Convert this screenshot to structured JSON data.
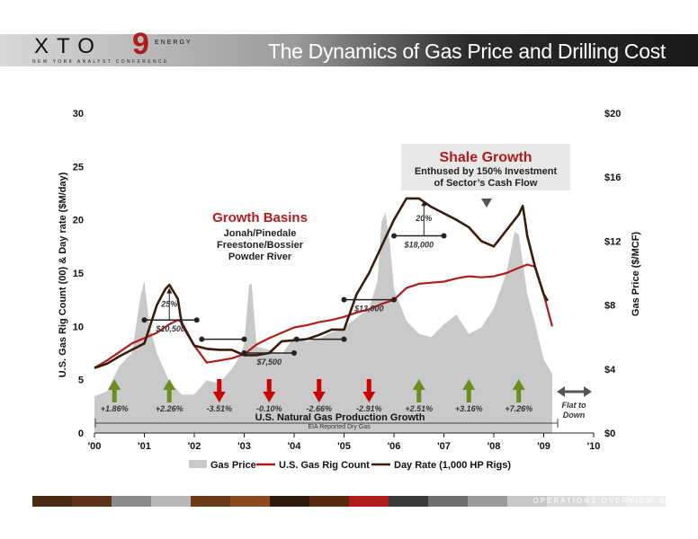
{
  "header": {
    "logo_text": "XTO",
    "logo_nine": "9",
    "logo_energy": "ENERGY",
    "logo_sub": "NEW YORK ANALYST CONFERENCE",
    "title": "The Dynamics of Gas Price and Drilling Cost"
  },
  "footer": {
    "label": "OPERATIONS OVERVIEW",
    "page": "6",
    "bar_colors": [
      "#4a2a12",
      "#5c3318",
      "#8a8a8a",
      "#b8b8b8",
      "#6b3b18",
      "#8b4a20",
      "#2e1a0c",
      "#5a2a10",
      "#b01c1c",
      "#3a3a3a",
      "#6e6e6e",
      "#9a9a9a",
      "#c8c8c8",
      "#d8d8d8",
      "#e4e4e4",
      "#eeeeee"
    ]
  },
  "colors": {
    "gas_fill": "#c9c9c9",
    "rig_line": "#b01c1c",
    "day_line": "#3a1c0c",
    "up_arrow": "#6b8e23",
    "down_arrow": "#cc0000",
    "title_red": "#b01c1c"
  },
  "chart_data": {
    "type": "line",
    "xlabel": "",
    "ylabel_left": "U.S. Gas Rig Count (00) & Day rate ($M/day)",
    "ylabel_right": "Gas Price ($/MCF)",
    "x_ticks": [
      "'00",
      "'01",
      "'02",
      "'03",
      "'04",
      "'05",
      "'06",
      "'07",
      "'08",
      "'09",
      "'10"
    ],
    "x_range": [
      2000,
      2010
    ],
    "y_left_ticks": [
      "0",
      "5",
      "10",
      "15",
      "20",
      "25",
      "30"
    ],
    "y_left_range": [
      0,
      30
    ],
    "y_right_ticks": [
      "$0",
      "$4",
      "$8",
      "$12",
      "$16",
      "$20"
    ],
    "y_right_range": [
      0,
      20
    ],
    "legend": [
      "Gas Price",
      "U.S. Gas Rig Count",
      "Day Rate (1,000 HP Rigs)"
    ],
    "legend_position": "bottom",
    "series": [
      {
        "name": "Gas Price",
        "kind": "area",
        "axis": "right",
        "x": [
          2000.0,
          2000.25,
          2000.5,
          2000.75,
          2000.92,
          2001.0,
          2001.1,
          2001.25,
          2001.5,
          2001.75,
          2002.0,
          2002.25,
          2002.5,
          2002.75,
          2002.92,
          2003.0,
          2003.1,
          2003.15,
          2003.25,
          2003.5,
          2003.75,
          2004.0,
          2004.25,
          2004.5,
          2004.75,
          2004.92,
          2005.0,
          2005.25,
          2005.5,
          2005.67,
          2005.75,
          2005.83,
          2005.92,
          2006.0,
          2006.25,
          2006.5,
          2006.75,
          2007.0,
          2007.25,
          2007.5,
          2007.75,
          2008.0,
          2008.25,
          2008.42,
          2008.5,
          2008.67,
          2008.83,
          2009.0,
          2009.17
        ],
        "values": [
          2.3,
          2.6,
          4.2,
          5.0,
          8.5,
          9.5,
          6.8,
          5.0,
          3.2,
          2.4,
          2.4,
          3.3,
          3.1,
          4.0,
          4.8,
          5.6,
          9.3,
          9.3,
          5.4,
          5.2,
          4.9,
          6.0,
          5.7,
          5.9,
          6.3,
          6.4,
          6.6,
          7.2,
          7.8,
          9.5,
          13.2,
          13.8,
          11.8,
          9.0,
          7.0,
          6.2,
          6.0,
          6.8,
          7.4,
          6.2,
          6.6,
          7.8,
          10.0,
          12.6,
          12.4,
          8.7,
          6.8,
          4.6,
          3.7
        ]
      },
      {
        "name": "U.S. Gas Rig Count",
        "kind": "line",
        "axis": "left",
        "x": [
          2000.0,
          2000.25,
          2000.5,
          2000.75,
          2001.0,
          2001.25,
          2001.5,
          2001.67,
          2001.75,
          2002.0,
          2002.25,
          2002.5,
          2002.75,
          2003.0,
          2003.25,
          2003.5,
          2003.75,
          2004.0,
          2004.25,
          2004.5,
          2004.75,
          2005.0,
          2005.25,
          2005.5,
          2005.75,
          2006.0,
          2006.25,
          2006.5,
          2006.75,
          2007.0,
          2007.25,
          2007.5,
          2007.75,
          2008.0,
          2008.25,
          2008.5,
          2008.67,
          2008.83,
          2009.0,
          2009.17
        ],
        "values": [
          6.1,
          6.8,
          7.6,
          8.4,
          8.9,
          9.4,
          10.2,
          10.6,
          10.4,
          8.2,
          6.6,
          6.8,
          7.0,
          7.4,
          8.3,
          8.9,
          9.4,
          9.9,
          10.1,
          10.4,
          10.6,
          10.9,
          11.3,
          11.6,
          12.1,
          12.5,
          13.6,
          14.0,
          14.1,
          14.2,
          14.5,
          14.7,
          14.6,
          14.7,
          15.0,
          15.5,
          15.8,
          15.6,
          13.0,
          10.0
        ]
      },
      {
        "name": "Day Rate (1,000 HP Rigs)",
        "kind": "line",
        "axis": "left",
        "x": [
          2000.0,
          2000.25,
          2000.5,
          2000.75,
          2001.0,
          2001.25,
          2001.42,
          2001.5,
          2001.67,
          2001.75,
          2002.0,
          2002.25,
          2002.5,
          2002.75,
          2003.0,
          2003.25,
          2003.5,
          2003.75,
          2004.0,
          2004.25,
          2004.5,
          2004.75,
          2005.0,
          2005.25,
          2005.5,
          2005.75,
          2006.0,
          2006.25,
          2006.5,
          2006.75,
          2007.0,
          2007.25,
          2007.5,
          2007.75,
          2008.0,
          2008.25,
          2008.5,
          2008.58,
          2008.67,
          2008.83,
          2009.0,
          2009.08
        ],
        "values": [
          6.1,
          6.5,
          7.2,
          7.8,
          8.4,
          12.0,
          13.5,
          13.9,
          12.6,
          10.2,
          8.2,
          7.9,
          7.8,
          7.8,
          7.3,
          7.3,
          7.5,
          8.6,
          8.7,
          8.8,
          9.2,
          9.7,
          9.7,
          13.0,
          15.0,
          17.5,
          20.0,
          22.0,
          22.0,
          21.2,
          20.6,
          20.0,
          19.3,
          18.0,
          17.5,
          19.0,
          20.5,
          21.3,
          18.5,
          15.5,
          13.0,
          12.4
        ]
      }
    ],
    "growth_markers": [
      {
        "year": 2000.4,
        "direction": "up",
        "label": "+1.86%"
      },
      {
        "year": 2001.5,
        "direction": "up",
        "label": "+2.26%"
      },
      {
        "year": 2002.5,
        "direction": "down",
        "label": "-3.51%"
      },
      {
        "year": 2003.5,
        "direction": "down",
        "label": "-0.10%"
      },
      {
        "year": 2004.5,
        "direction": "down",
        "label": "-2.66%"
      },
      {
        "year": 2005.5,
        "direction": "down",
        "label": "-2.91%"
      },
      {
        "year": 2006.5,
        "direction": "up",
        "label": "+2.51%"
      },
      {
        "year": 2007.5,
        "direction": "up",
        "label": "+3.16%"
      },
      {
        "year": 2008.5,
        "direction": "up",
        "label": "+7.26%"
      }
    ],
    "flat_label": [
      "Flat to",
      "Down"
    ],
    "production_label": "U.S. Natural Gas Production Growth",
    "production_sub": "EIA Reported Dry Gas",
    "cost_ranges": [
      {
        "x1": 2001.0,
        "x2": 2002.05,
        "y": 10.6,
        "label": "$10,500"
      },
      {
        "x1": 2002.15,
        "x2": 2003.0,
        "y": 8.8,
        "label": ""
      },
      {
        "x1": 2003.0,
        "x2": 2004.0,
        "y": 7.5,
        "label": "$7,500"
      },
      {
        "x1": 2004.05,
        "x2": 2005.0,
        "y": 8.8,
        "label": ""
      },
      {
        "x1": 2005.0,
        "x2": 2006.0,
        "y": 12.5,
        "label": "$13,000"
      },
      {
        "x1": 2006.0,
        "x2": 2007.0,
        "y": 18.5,
        "label": "$18,000"
      }
    ],
    "pct_annotations": [
      {
        "x": 2001.5,
        "y_from": 10.6,
        "y_to": 13.6,
        "label": "25%"
      },
      {
        "x": 2006.6,
        "y_from": 18.5,
        "y_to": 21.8,
        "label": "20%"
      }
    ],
    "callouts": [
      {
        "title": "Growth Basins",
        "lines": [
          "Jonah/Pinedale",
          "Freestone/Bossier",
          "Powder River"
        ]
      },
      {
        "title": "Shale Growth",
        "lines": [
          "Enthused by 150% Investment",
          "of Sector’s Cash Flow"
        ]
      }
    ]
  }
}
